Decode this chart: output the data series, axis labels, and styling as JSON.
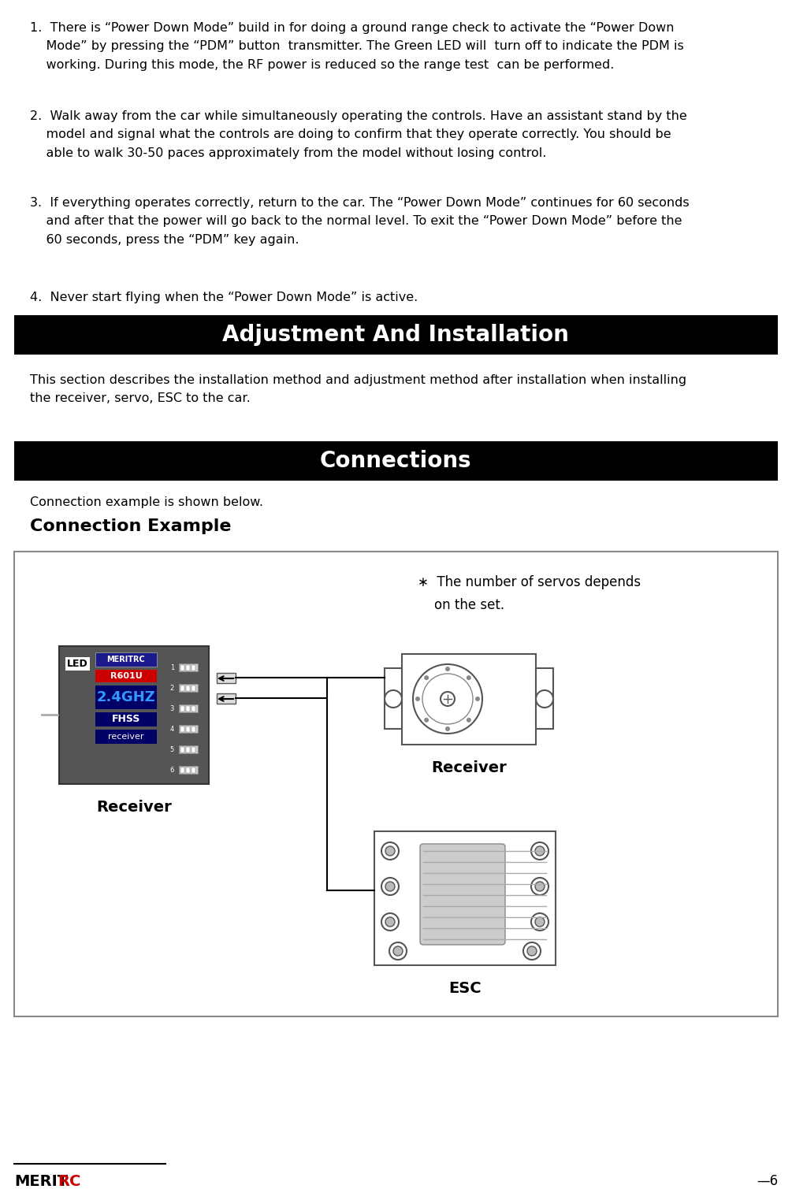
{
  "title1": "Adjustment And Installation",
  "title2": "Connections",
  "subtitle2": "Connection example is shown below.",
  "subtitle2b": "Connection Example",
  "body_text": "This section describes the installation method and adjustment method after installation when installing\nthe receiver, servo, ESC to the car.",
  "note_text": "∗  The number of servos depends\n    on the set.",
  "receiver_label": "Receiver",
  "esc_label": "ESC",
  "para1": "1.  There is “Power Down Mode” build in for doing a ground range check to activate the “Power Down\n    Mode” by pressing the “PDM” button  transmitter. The Green LED will  turn off to indicate the PDM is\n    working. During this mode, the RF power is reduced so the range test  can be performed.",
  "para2": "2.  Walk away from the car while simultaneously operating the controls. Have an assistant stand by the\n    model and signal what the controls are doing to confirm that they operate correctly. You should be\n    able to walk 30-50 paces approximately from the model without losing control.",
  "para3": "3.  If everything operates correctly, return to the car. The “Power Down Mode” continues for 60 seconds\n    and after that the power will go back to the normal level. To exit the “Power Down Mode” before the\n    60 seconds, press the “PDM” key again.",
  "para4": "4.  Never start flying when the “Power Down Mode” is active.",
  "meritrc_color": "#cc0000",
  "bg_color": "#ffffff",
  "header_bg": "#000000",
  "header_fg": "#ffffff",
  "page_number": "6"
}
